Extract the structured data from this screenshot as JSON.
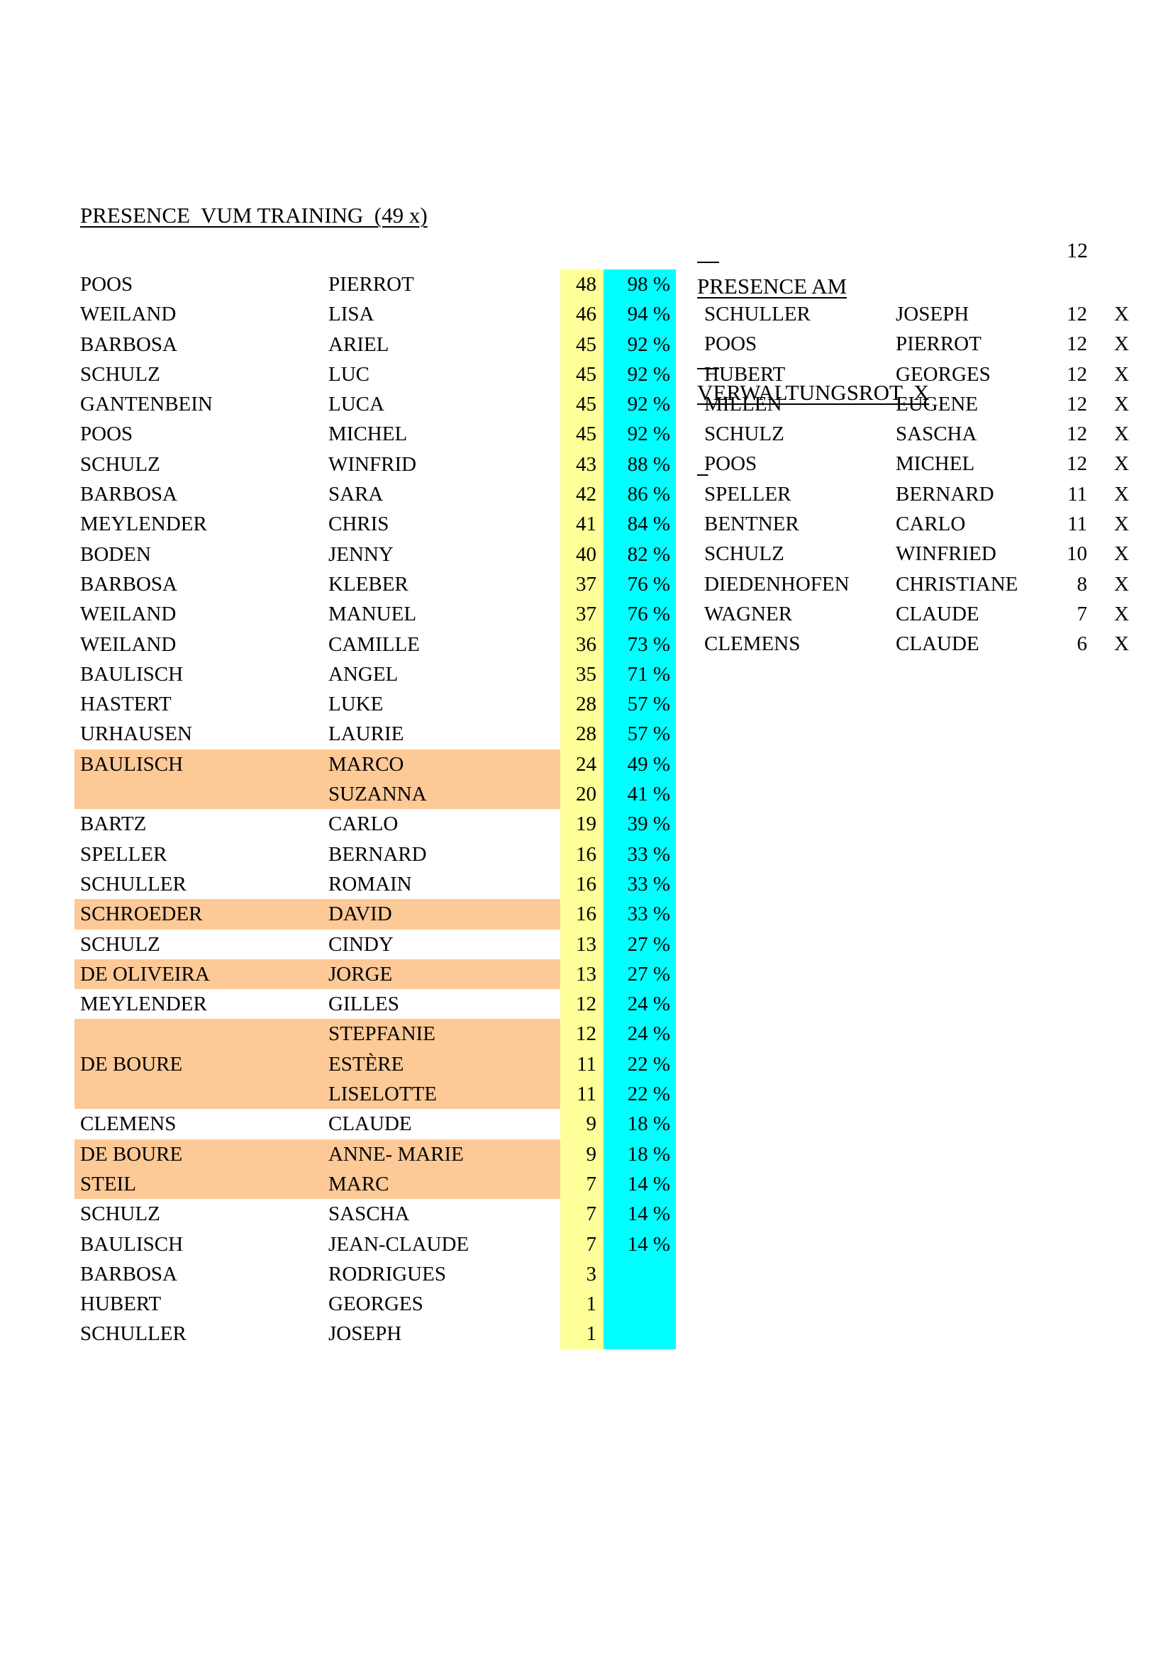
{
  "colors": {
    "count_col_bg": "#FFFF99",
    "pct_col_bg": "#00FFFF",
    "highlight_bg": "#FDC997",
    "text": "#000000",
    "page_bg": "#FFFFFF"
  },
  "left_table": {
    "title": "PRESENCE  VUM TRAINING  (49 x)",
    "rows": [
      {
        "surname": "POOS",
        "first": "PIERROT",
        "count": "48",
        "pct": "98 %",
        "hl": false
      },
      {
        "surname": "WEILAND",
        "first": "LISA",
        "count": "46",
        "pct": "94 %",
        "hl": false
      },
      {
        "surname": "BARBOSA",
        "first": "ARIEL",
        "count": "45",
        "pct": "92 %",
        "hl": false
      },
      {
        "surname": "SCHULZ",
        "first": "LUC",
        "count": "45",
        "pct": "92 %",
        "hl": false
      },
      {
        "surname": "GANTENBEIN",
        "first": "LUCA",
        "count": "45",
        "pct": "92 %",
        "hl": false
      },
      {
        "surname": "POOS",
        "first": "MICHEL",
        "count": "45",
        "pct": "92 %",
        "hl": false
      },
      {
        "surname": "SCHULZ",
        "first": "WINFRID",
        "count": "43",
        "pct": "88 %",
        "hl": false
      },
      {
        "surname": "BARBOSA",
        "first": "SARA",
        "count": "42",
        "pct": "86 %",
        "hl": false
      },
      {
        "surname": "MEYLENDER",
        "first": "CHRIS",
        "count": "41",
        "pct": "84 %",
        "hl": false
      },
      {
        "surname": "BODEN",
        "first": "JENNY",
        "count": "40",
        "pct": "82 %",
        "hl": false
      },
      {
        "surname": "BARBOSA",
        "first": "KLEBER",
        "count": "37",
        "pct": "76 %",
        "hl": false
      },
      {
        "surname": "WEILAND",
        "first": "MANUEL",
        "count": "37",
        "pct": "76 %",
        "hl": false
      },
      {
        "surname": "WEILAND",
        "first": "CAMILLE",
        "count": "36",
        "pct": "73 %",
        "hl": false
      },
      {
        "surname": "BAULISCH",
        "first": "ANGEL",
        "count": "35",
        "pct": "71 %",
        "hl": false
      },
      {
        "surname": "HASTERT",
        "first": "LUKE",
        "count": "28",
        "pct": "57 %",
        "hl": false
      },
      {
        "surname": "URHAUSEN",
        "first": "LAURIE",
        "count": "28",
        "pct": "57 %",
        "hl": false
      },
      {
        "surname": "BAULISCH",
        "first": "MARCO",
        "count": "24",
        "pct": "49 %",
        "hl": true
      },
      {
        "surname": "",
        "first": "SUZANNA",
        "count": "20",
        "pct": "41 %",
        "hl": true
      },
      {
        "surname": "BARTZ",
        "first": "CARLO",
        "count": "19",
        "pct": "39 %",
        "hl": false
      },
      {
        "surname": "SPELLER",
        "first": "BERNARD",
        "count": "16",
        "pct": "33 %",
        "hl": false
      },
      {
        "surname": "SCHULLER",
        "first": "ROMAIN",
        "count": "16",
        "pct": "33 %",
        "hl": false
      },
      {
        "surname": "SCHROEDER",
        "first": "DAVID",
        "count": "16",
        "pct": "33 %",
        "hl": true
      },
      {
        "surname": "SCHULZ",
        "first": "CINDY",
        "count": "13",
        "pct": "27 %",
        "hl": false
      },
      {
        "surname": "DE OLIVEIRA",
        "first": "JORGE",
        "count": "13",
        "pct": "27 %",
        "hl": true
      },
      {
        "surname": "MEYLENDER",
        "first": "GILLES",
        "count": "12",
        "pct": "24 %",
        "hl": false
      },
      {
        "surname": "",
        "first": "STEPFANIE",
        "count": "12",
        "pct": "24 %",
        "hl": true
      },
      {
        "surname": "DE BOURE",
        "first": "ESTÈRE",
        "count": "11",
        "pct": "22 %",
        "hl": true
      },
      {
        "surname": "",
        "first": "LISELOTTE",
        "count": "11",
        "pct": "22 %",
        "hl": true
      },
      {
        "surname": "CLEMENS",
        "first": "CLAUDE",
        "count": "9",
        "pct": "18 %",
        "hl": false
      },
      {
        "surname": "DE BOURE",
        "first": "ANNE- MARIE",
        "count": "9",
        "pct": "18 %",
        "hl": true
      },
      {
        "surname": "STEIL",
        "first": "MARC",
        "count": "7",
        "pct": "14 %",
        "hl": true
      },
      {
        "surname": "SCHULZ",
        "first": "SASCHA",
        "count": "7",
        "pct": "14 %",
        "hl": false
      },
      {
        "surname": "BAULISCH",
        "first": "JEAN-CLAUDE",
        "count": "7",
        "pct": "14 %",
        "hl": false
      },
      {
        "surname": "BARBOSA",
        "first": "RODRIGUES",
        "count": "3",
        "pct": "",
        "hl": false
      },
      {
        "surname": "HUBERT",
        "first": "GEORGES",
        "count": "1",
        "pct": "",
        "hl": false
      },
      {
        "surname": "SCHULLER",
        "first": "JOSEPH",
        "count": "1",
        "pct": "",
        "hl": false
      }
    ]
  },
  "right_table": {
    "title_line1": "PRESENCE AM",
    "title_line2": "VERWALTUNGSROT  X",
    "title_value": "12",
    "rows": [
      {
        "surname": "SCHULLER",
        "first": "JOSEPH",
        "count": "12",
        "mark": "X"
      },
      {
        "surname": "POOS",
        "first": "PIERROT",
        "count": "12",
        "mark": "X"
      },
      {
        "surname": "HUBERT",
        "first": "GEORGES",
        "count": "12",
        "mark": "X"
      },
      {
        "surname": "MILLEN",
        "first": "EUGENE",
        "count": "12",
        "mark": "X"
      },
      {
        "surname": "SCHULZ",
        "first": "SASCHA",
        "count": "12",
        "mark": "X"
      },
      {
        "surname": "POOS",
        "first": "MICHEL",
        "count": "12",
        "mark": "X"
      },
      {
        "surname": "SPELLER",
        "first": "BERNARD",
        "count": "11",
        "mark": "X"
      },
      {
        "surname": "BENTNER",
        "first": "CARLO",
        "count": "11",
        "mark": "X"
      },
      {
        "surname": "SCHULZ",
        "first": "WINFRIED",
        "count": "10",
        "mark": "X"
      },
      {
        "surname": "DIEDENHOFEN",
        "first": "CHRISTIANE",
        "count": "8",
        "mark": "X"
      },
      {
        "surname": "WAGNER",
        "first": "CLAUDE",
        "count": "7",
        "mark": "X"
      },
      {
        "surname": "CLEMENS",
        "first": "CLAUDE",
        "count": "6",
        "mark": "X"
      }
    ]
  }
}
